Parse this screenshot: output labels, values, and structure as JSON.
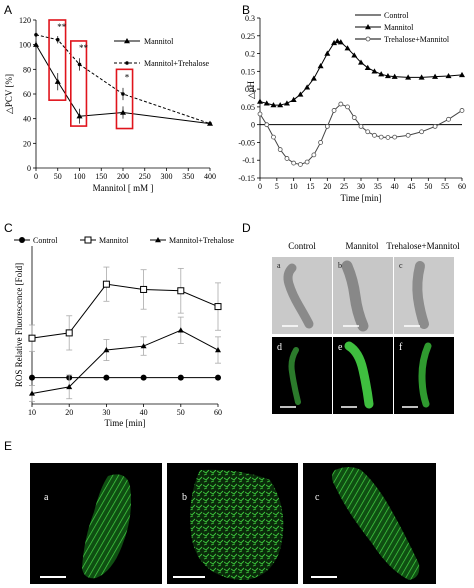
{
  "panels": {
    "A": {
      "letter": "A",
      "chart_data": {
        "type": "line",
        "xlabel": "Mannitol [ mM ]",
        "ylabel": "△PCV [%]",
        "xlim": [
          0,
          400
        ],
        "ylim": [
          0,
          120
        ],
        "xticks": [
          "0",
          "50",
          "100",
          "150",
          "200",
          "250",
          "300",
          "350",
          "400"
        ],
        "yticks": [
          "0",
          "20",
          "40",
          "60",
          "80",
          "100",
          "120"
        ],
        "legend_position": "top-right",
        "series": [
          {
            "name": "Mannitol",
            "style": "solid",
            "marker": "triangle",
            "x": [
              0,
              50,
              100,
              200,
              400
            ],
            "y": [
              100,
              70,
              42,
              45,
              36
            ],
            "err": [
              3,
              7,
              6,
              5,
              0
            ]
          },
          {
            "name": "Mannitol+Trehalose",
            "style": "dashed",
            "marker": "dot",
            "x": [
              0,
              50,
              100,
              200,
              400
            ],
            "y": [
              108,
              104,
              84,
              60,
              36
            ],
            "err": [
              2,
              3,
              5,
              5,
              0
            ]
          }
        ],
        "annotations": [
          {
            "text": "**",
            "x": 50,
            "y": 112
          },
          {
            "text": "**",
            "x": 100,
            "y": 95
          },
          {
            "text": "*",
            "x": 200,
            "y": 71
          }
        ],
        "highlight_boxes": [
          {
            "x0": 30,
            "x1": 68,
            "y0": 55,
            "y1": 120
          },
          {
            "x0": 80,
            "x1": 116,
            "y0": 34,
            "y1": 103
          },
          {
            "x0": 185,
            "x1": 222,
            "y0": 32,
            "y1": 80
          }
        ],
        "highlight_color": "#e0141c"
      }
    },
    "B": {
      "letter": "B",
      "chart_data": {
        "type": "line",
        "xlabel": "Time [min]",
        "ylabel": "△pH",
        "xlim": [
          0,
          60
        ],
        "ylim": [
          -0.15,
          0.3
        ],
        "xticks": [
          "0",
          "5",
          "10",
          "15",
          "20",
          "25",
          "30",
          "35",
          "40",
          "45",
          "50",
          "55",
          "60"
        ],
        "yticks": [
          "-0.15",
          "-0.1",
          "-0.05",
          "0",
          "0.05",
          "0.1",
          "0.15",
          "0.2",
          "0.25",
          "0.3"
        ],
        "legend_position": "top-right",
        "series": [
          {
            "name": "Control",
            "style": "solid",
            "marker": "none",
            "x": [
              0,
              60
            ],
            "y": [
              0,
              0
            ]
          },
          {
            "name": "Mannitol",
            "style": "solid",
            "marker": "triangle",
            "x": [
              0,
              2,
              4,
              6,
              8,
              10,
              12,
              14,
              16,
              18,
              20,
              22,
              23,
              24,
              26,
              28,
              30,
              32,
              34,
              36,
              38,
              40,
              44,
              48,
              52,
              56,
              60
            ],
            "y": [
              0.065,
              0.06,
              0.055,
              0.055,
              0.06,
              0.07,
              0.085,
              0.105,
              0.13,
              0.165,
              0.2,
              0.23,
              0.235,
              0.232,
              0.215,
              0.195,
              0.175,
              0.16,
              0.15,
              0.142,
              0.137,
              0.135,
              0.133,
              0.133,
              0.135,
              0.137,
              0.14
            ]
          },
          {
            "name": "Trehalose+Mannitol",
            "style": "solid",
            "marker": "circle",
            "x": [
              0,
              2,
              4,
              6,
              8,
              10,
              12,
              14,
              16,
              18,
              20,
              22,
              24,
              26,
              28,
              30,
              32,
              34,
              36,
              38,
              40,
              44,
              48,
              52,
              56,
              60
            ],
            "y": [
              0.03,
              0.0,
              -0.035,
              -0.07,
              -0.095,
              -0.108,
              -0.112,
              -0.105,
              -0.085,
              -0.05,
              -0.005,
              0.04,
              0.058,
              0.05,
              0.02,
              -0.005,
              -0.02,
              -0.03,
              -0.035,
              -0.036,
              -0.035,
              -0.03,
              -0.02,
              -0.005,
              0.015,
              0.04
            ]
          }
        ]
      }
    },
    "C": {
      "letter": "C",
      "chart_data": {
        "type": "line",
        "xlabel": "Time [min]",
        "ylabel": "ROS Relative Fluorescence [Fold]",
        "xlim": [
          10,
          60
        ],
        "ylim": [
          0.8,
          2.0
        ],
        "xticks": [
          "10",
          "20",
          "30",
          "40",
          "50",
          "60"
        ],
        "legend_position": "top",
        "series": [
          {
            "name": "Control",
            "style": "solid",
            "marker": "circle-filled",
            "x": [
              10,
              20,
              30,
              40,
              50,
              60
            ],
            "y": [
              1.0,
              1.0,
              1.0,
              1.0,
              1.0,
              1.0
            ],
            "err": [
              0,
              0,
              0,
              0,
              0,
              0
            ]
          },
          {
            "name": "Mannitol",
            "style": "solid",
            "marker": "square-open",
            "x": [
              10,
              20,
              30,
              40,
              50,
              60
            ],
            "y": [
              1.3,
              1.34,
              1.71,
              1.67,
              1.66,
              1.54
            ],
            "err": [
              0.1,
              0.13,
              0.13,
              0.15,
              0.17,
              0.18
            ]
          },
          {
            "name": "Mannitol+Trehalose",
            "style": "solid",
            "marker": "triangle-filled",
            "x": [
              10,
              20,
              30,
              40,
              50,
              60
            ],
            "y": [
              0.88,
              0.93,
              1.21,
              1.24,
              1.36,
              1.21
            ],
            "err": [
              0.06,
              0.09,
              0.08,
              0.07,
              0.1,
              0.1
            ]
          }
        ]
      }
    },
    "D": {
      "letter": "D",
      "columns": [
        "Control",
        "Mannitol",
        "Trehalose+Mannitol"
      ],
      "row1_labels": [
        "a",
        "b",
        "c"
      ],
      "row2_labels": [
        "d",
        "e",
        "f"
      ]
    },
    "E": {
      "letter": "E",
      "labels": [
        "a",
        "b",
        "c"
      ]
    }
  }
}
